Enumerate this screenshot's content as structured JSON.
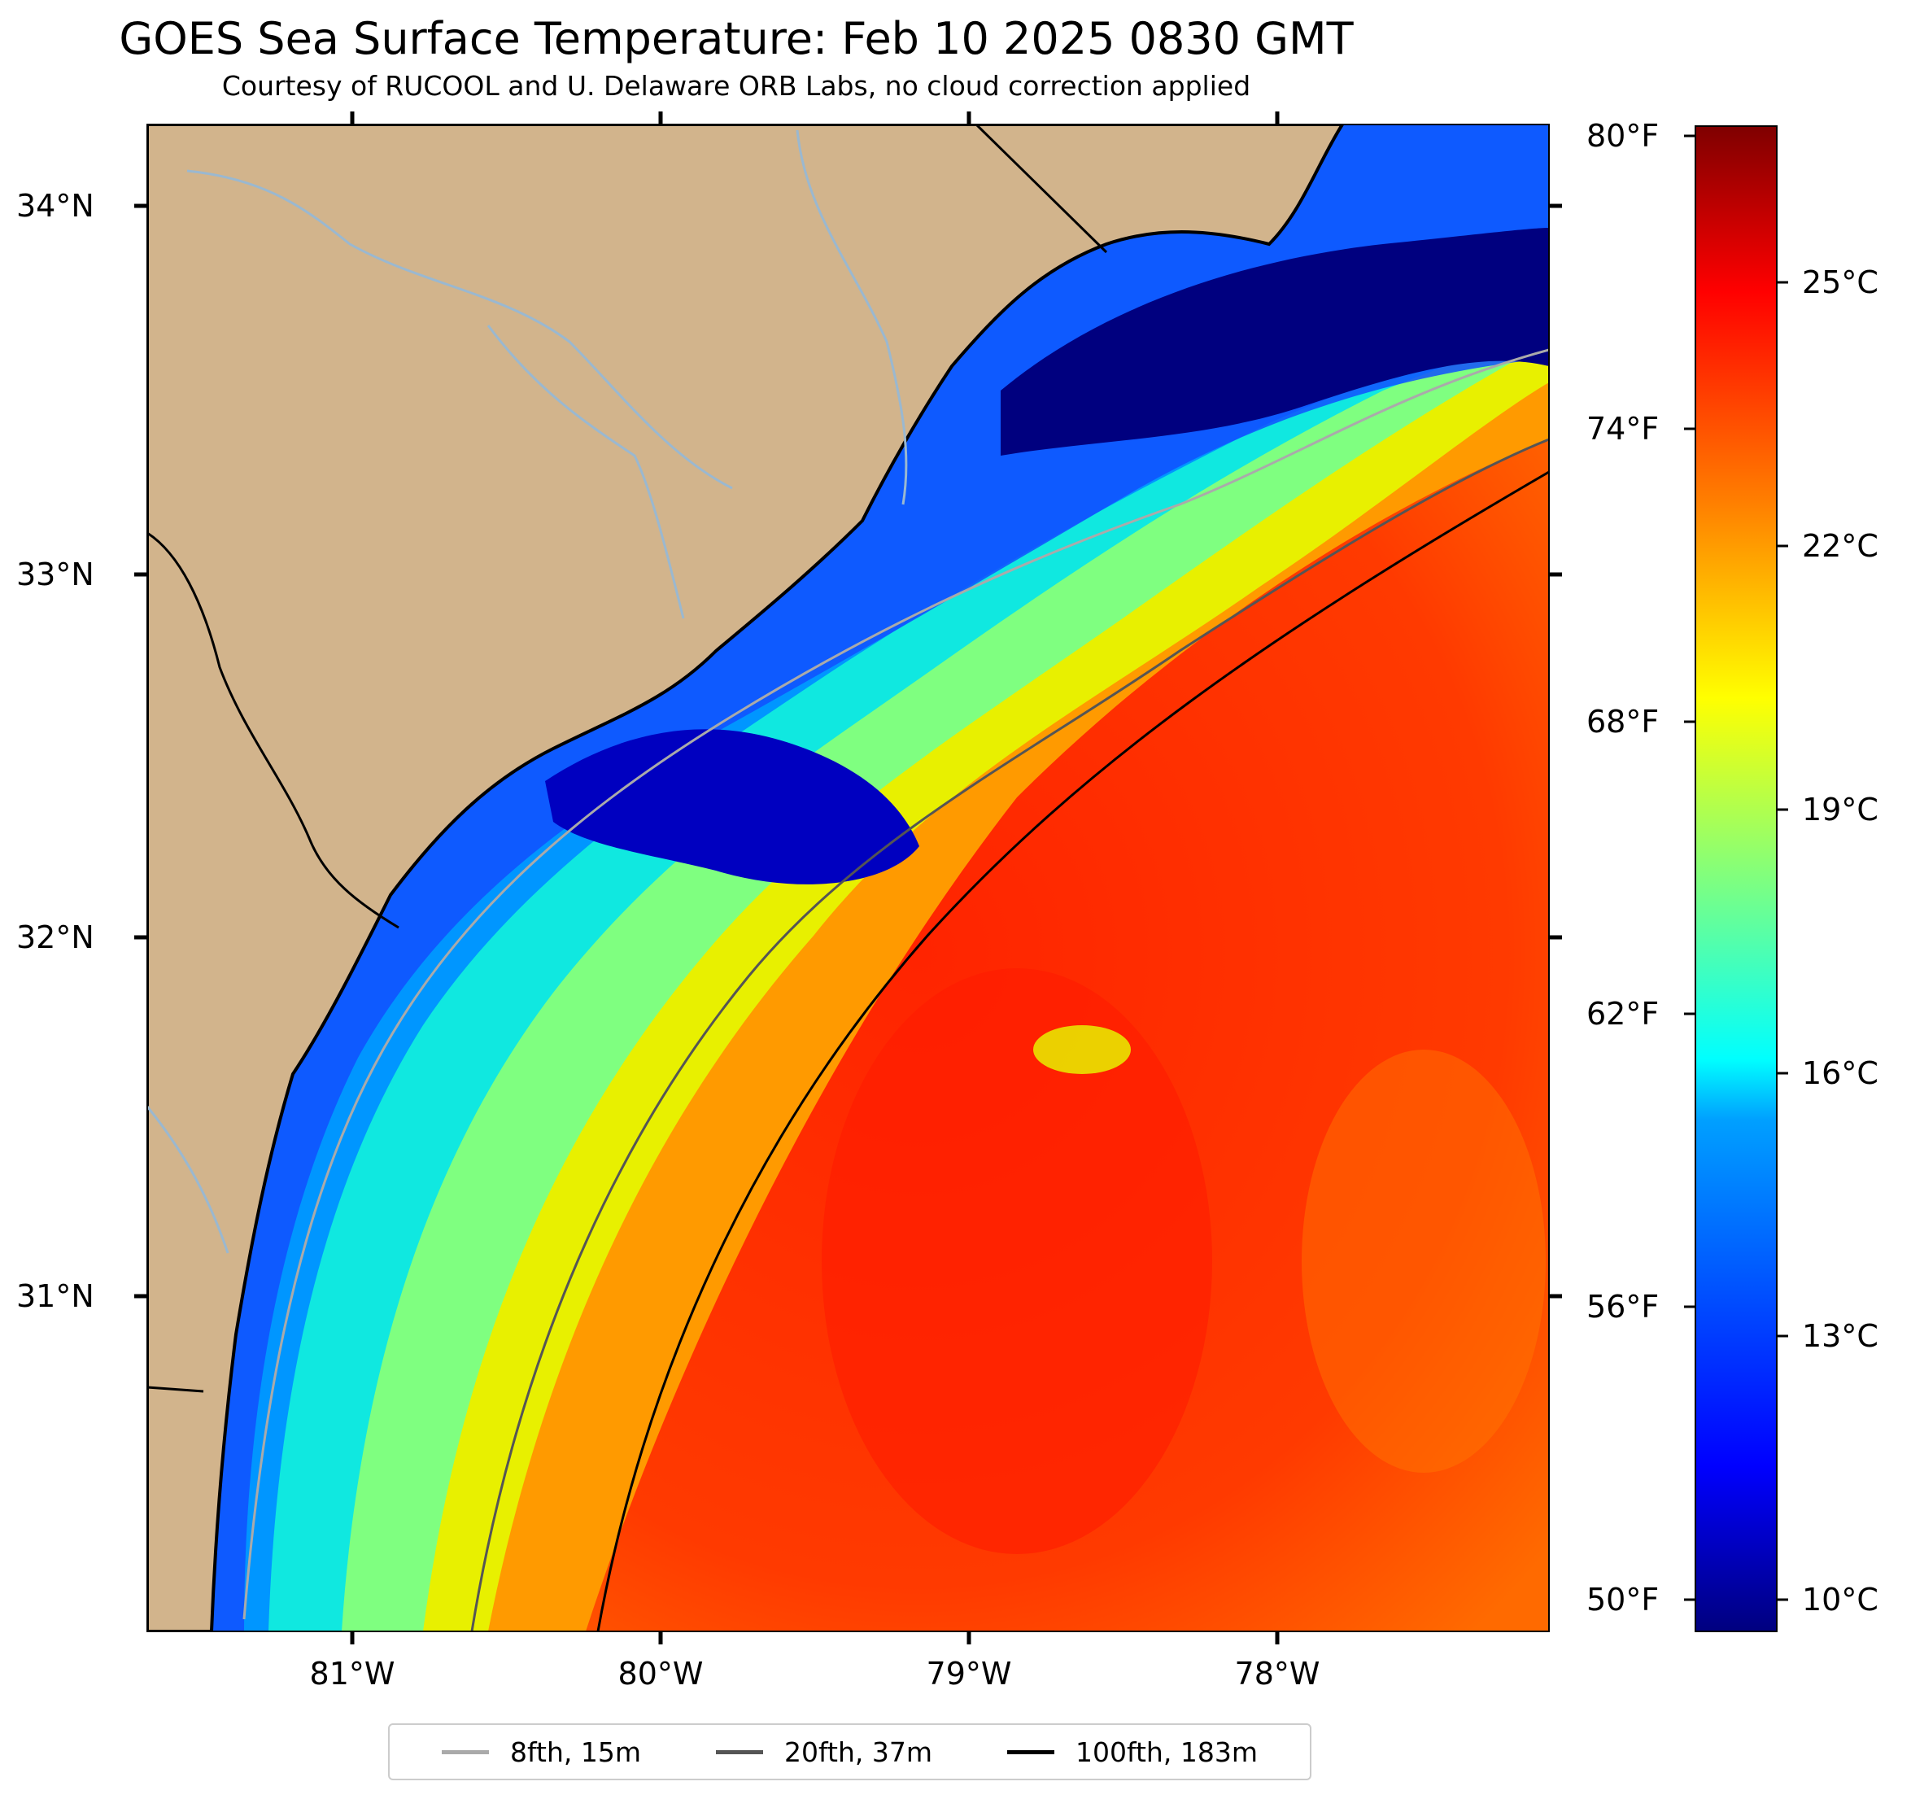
{
  "title": "GOES Sea Surface Temperature: Feb 10 2025 0830 GMT",
  "subtitle": "Courtesy of RUCOOL and U. Delaware ORB Labs, no cloud correction applied",
  "latitude_labels": [
    "34°N",
    "33°N",
    "32°N",
    "31°N"
  ],
  "longitude_labels": [
    "81°W",
    "80°W",
    "79°W",
    "78°W"
  ],
  "colorbar": {
    "fahrenheit_labels": [
      "80°F",
      "74°F",
      "68°F",
      "62°F",
      "56°F",
      "50°F"
    ],
    "celsius_labels": [
      "25°C",
      "22°C",
      "19°C",
      "16°C",
      "13°C",
      "10°C"
    ],
    "colormap": "jet",
    "colors": [
      "#00007f",
      "#0000ff",
      "#007fff",
      "#00ffff",
      "#7fff7f",
      "#ffff00",
      "#ff7f00",
      "#ff0000",
      "#7f0000"
    ]
  },
  "map_colors": {
    "land": "#d2b48c",
    "coastline": "#000000",
    "rivers": "#9ab8d0"
  },
  "legend": [
    {
      "label": "8fth, 15m",
      "color": "#aaaaaa"
    },
    {
      "label": "20fth, 37m",
      "color": "#555555"
    },
    {
      "label": "100fth, 183m",
      "color": "#000000"
    }
  ]
}
